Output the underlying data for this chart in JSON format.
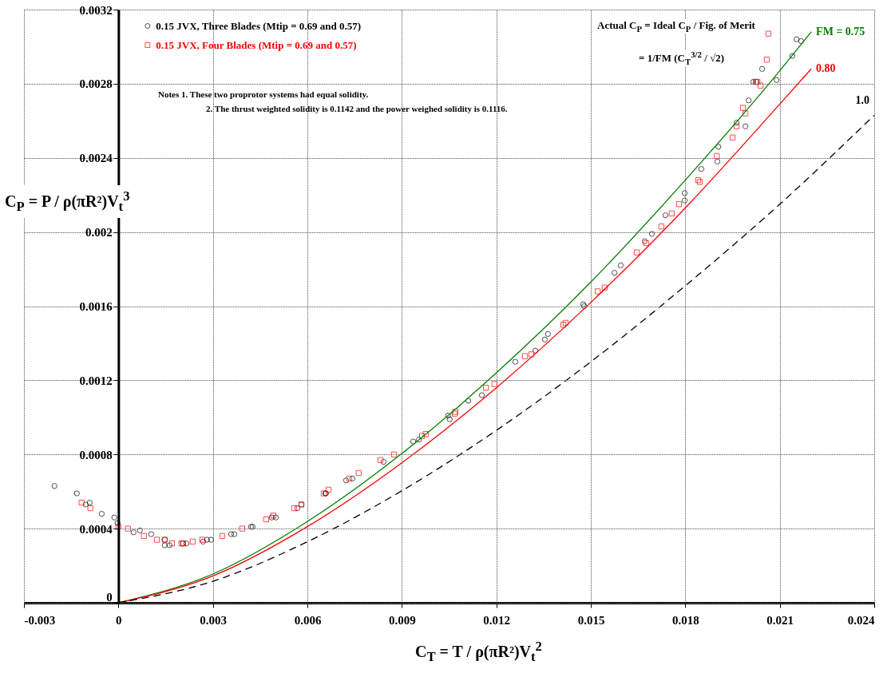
{
  "chart_data": {
    "type": "scatter",
    "xlabel": "C$_{T}$ = T / ρ(πR²)V$_{t}$$^{2}$",
    "ylabel": "C$_{P}$ = P / ρ(πR²)V$_{t}$$^{3}$",
    "annotations": [
      "Actual C$_{P}$ = Ideal C$_{P}$ / Fig. of Merit",
      "= 1/FM (C$_{T}$$^{3/2}$ / √2)",
      "Notes 1. These two proprotor systems had equal solidity.",
      "2. The thrust weighted solidity is 0.1142 and the power weighed solidity is 0.1116."
    ],
    "xlim": [
      -0.003,
      0.024
    ],
    "xticks": [
      -0.003,
      0,
      0.003,
      0.006,
      0.009,
      0.012,
      0.015,
      0.018,
      0.021,
      0.024
    ],
    "ylim": [
      0,
      0.0032
    ],
    "yticks": [
      0,
      0.0004,
      0.0008,
      0.0012,
      0.0016,
      0.002,
      0.0024,
      0.0028,
      0.0032
    ],
    "grid": true,
    "legend": "top left",
    "series": [
      {
        "name": "0.15 JVX, Three Blades (Mtip = 0.69 and 0.57)",
        "color": "#000000",
        "marker": "circle",
        "x": [
          -0.00203,
          -0.00132,
          -0.00104,
          -0.00091,
          -0.00053,
          -0.00013,
          -3e-05,
          0.00048,
          0.00068,
          0.00104,
          0.00147,
          0.00147,
          0.00162,
          0.00205,
          0.00216,
          0.00269,
          0.00281,
          0.00294,
          0.00358,
          0.00368,
          0.00421,
          0.00426,
          0.00487,
          0.005,
          0.00568,
          0.00581,
          0.00657,
          0.00659,
          0.00723,
          0.00743,
          0.00842,
          0.00936,
          0.00954,
          0.01047,
          0.01052,
          0.01111,
          0.01154,
          0.0126,
          0.01324,
          0.01354,
          0.01364,
          0.01476,
          0.01479,
          0.01575,
          0.01595,
          0.01671,
          0.01694,
          0.01737,
          0.01798,
          0.01798,
          0.01851,
          0.01902,
          0.01905,
          0.01963,
          0.01991,
          0.02001,
          0.02016,
          0.02026,
          0.02044,
          0.0209,
          0.0214,
          0.02153,
          0.02168
        ],
        "values": [
          0.00063,
          0.00059,
          0.00053,
          0.00054,
          0.00048,
          0.00046,
          0.00043,
          0.00038,
          0.00039,
          0.00037,
          0.00034,
          0.00031,
          0.00031,
          0.00032,
          0.00032,
          0.00033,
          0.00034,
          0.00034,
          0.00037,
          0.00037,
          0.00041,
          0.00041,
          0.00046,
          0.00046,
          0.00051,
          0.00053,
          0.00059,
          0.00059,
          0.00066,
          0.00067,
          0.00076,
          0.00087,
          0.00088,
          0.00101,
          0.00099,
          0.00109,
          0.00112,
          0.0013,
          0.00136,
          0.00142,
          0.00145,
          0.00161,
          0.0016,
          0.00178,
          0.00182,
          0.00195,
          0.00199,
          0.00209,
          0.00221,
          0.00217,
          0.00234,
          0.00238,
          0.00246,
          0.00259,
          0.00257,
          0.00271,
          0.00281,
          0.00281,
          0.00288,
          0.00282,
          0.00295,
          0.00304,
          0.00303
        ]
      },
      {
        "name": "0.15 JVX, Four Blades (Mtip = 0.69 and 0.57)",
        "color": "#ff0000",
        "marker": "square",
        "x": [
          -0.00117,
          -0.00089,
          0,
          0.0003,
          0.00081,
          0.00122,
          0.00147,
          0.0017,
          0.002,
          0.00205,
          0.00236,
          0.00266,
          0.0033,
          0.00393,
          0.00469,
          0.00492,
          0.00558,
          0.00581,
          0.00652,
          0.00667,
          0.00733,
          0.00763,
          0.00832,
          0.00875,
          0.00964,
          0.00976,
          0.01068,
          0.0107,
          0.01167,
          0.01194,
          0.01291,
          0.01311,
          0.01413,
          0.0142,
          0.01522,
          0.01544,
          0.01646,
          0.01676,
          0.01724,
          0.01757,
          0.0178,
          0.01841,
          0.01846,
          0.019,
          0.0195,
          0.01963,
          0.01983,
          0.01991,
          0.02024,
          0.02029,
          0.02039,
          0.02059,
          0.02064
        ],
        "values": [
          0.00054,
          0.00051,
          0.00041,
          0.0004,
          0.00036,
          0.00034,
          0.00034,
          0.00032,
          0.00032,
          0.00032,
          0.00033,
          0.00034,
          0.00036,
          0.0004,
          0.00045,
          0.00047,
          0.00051,
          0.00053,
          0.00059,
          0.00061,
          0.00067,
          0.0007,
          0.00077,
          0.0008,
          0.0009,
          0.00091,
          0.00102,
          0.00103,
          0.00116,
          0.00118,
          0.00133,
          0.00134,
          0.0015,
          0.00151,
          0.00168,
          0.0017,
          0.00189,
          0.00194,
          0.00203,
          0.0021,
          0.00215,
          0.00228,
          0.00227,
          0.00241,
          0.00251,
          0.00257,
          0.00267,
          0.00264,
          0.00281,
          0.00281,
          0.00279,
          0.00293,
          0.00307
        ]
      },
      {
        "name": "FM = 0.75",
        "type": "line",
        "color": "#008000",
        "line_style": "solid",
        "x": [
          0,
          0.003,
          0.006,
          0.009,
          0.012,
          0.015,
          0.018,
          0.021,
          0.022
        ],
        "values": [
          0,
          0.000155,
          0.000438,
          0.000805,
          0.00124,
          0.00173,
          0.00228,
          0.00287,
          0.00308
        ]
      },
      {
        "name": "0.80",
        "type": "line",
        "color": "#ff0000",
        "line_style": "solid",
        "x": [
          0,
          0.003,
          0.006,
          0.009,
          0.012,
          0.015,
          0.018,
          0.021,
          0.022
        ],
        "values": [
          0,
          0.000145,
          0.000411,
          0.000755,
          0.00116,
          0.00162,
          0.00213,
          0.00269,
          0.00288
        ]
      },
      {
        "name": "1.0",
        "type": "line",
        "color": "#000000",
        "line_style": "dashed",
        "x": [
          0,
          0.003,
          0.006,
          0.009,
          0.012,
          0.015,
          0.018,
          0.021,
          0.024
        ],
        "values": [
          0,
          0.000116,
          0.000329,
          0.000604,
          0.00093,
          0.0013,
          0.00171,
          0.00215,
          0.00263
        ]
      }
    ]
  }
}
